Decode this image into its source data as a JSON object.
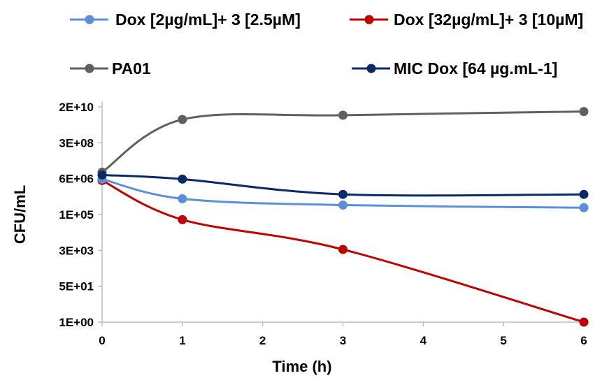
{
  "chart_data": {
    "type": "line",
    "title": "",
    "xlabel": "Time (h)",
    "ylabel": "CFU/mL",
    "y_scale": "log",
    "xlim": [
      0,
      6
    ],
    "ylim": [
      1,
      20000000000
    ],
    "x_ticks": [
      "0",
      "1",
      "2",
      "3",
      "4",
      "5",
      "6"
    ],
    "y_ticks": [
      "2E+10",
      "3E+08",
      "6E+06",
      "1E+05",
      "3E+03",
      "5E+01",
      "1E+00"
    ],
    "grid": false,
    "legend_position": "top",
    "series": [
      {
        "name": "Dox [2µg/mL]+ 3 [2.5µM]",
        "color": "#5b8fd9",
        "x": [
          0,
          1,
          3,
          6
        ],
        "y": [
          7000000,
          800000,
          400000,
          300000
        ]
      },
      {
        "name": "Dox [32µg/mL]+ 3 [10µM]",
        "color": "#c00000",
        "x": [
          0,
          1,
          3,
          6
        ],
        "y": [
          6000000,
          80000,
          3000,
          1
        ]
      },
      {
        "name": "PA01",
        "color": "#606060",
        "x": [
          0,
          1,
          3,
          6
        ],
        "y": [
          15000000,
          5000000000,
          8000000000,
          12000000000
        ]
      },
      {
        "name": "MIC Dox [64 µg.mL-1]",
        "color": "#0a2a66",
        "x": [
          0,
          1,
          3,
          6
        ],
        "y": [
          11000000,
          7000000,
          1300000,
          1300000
        ]
      }
    ]
  }
}
